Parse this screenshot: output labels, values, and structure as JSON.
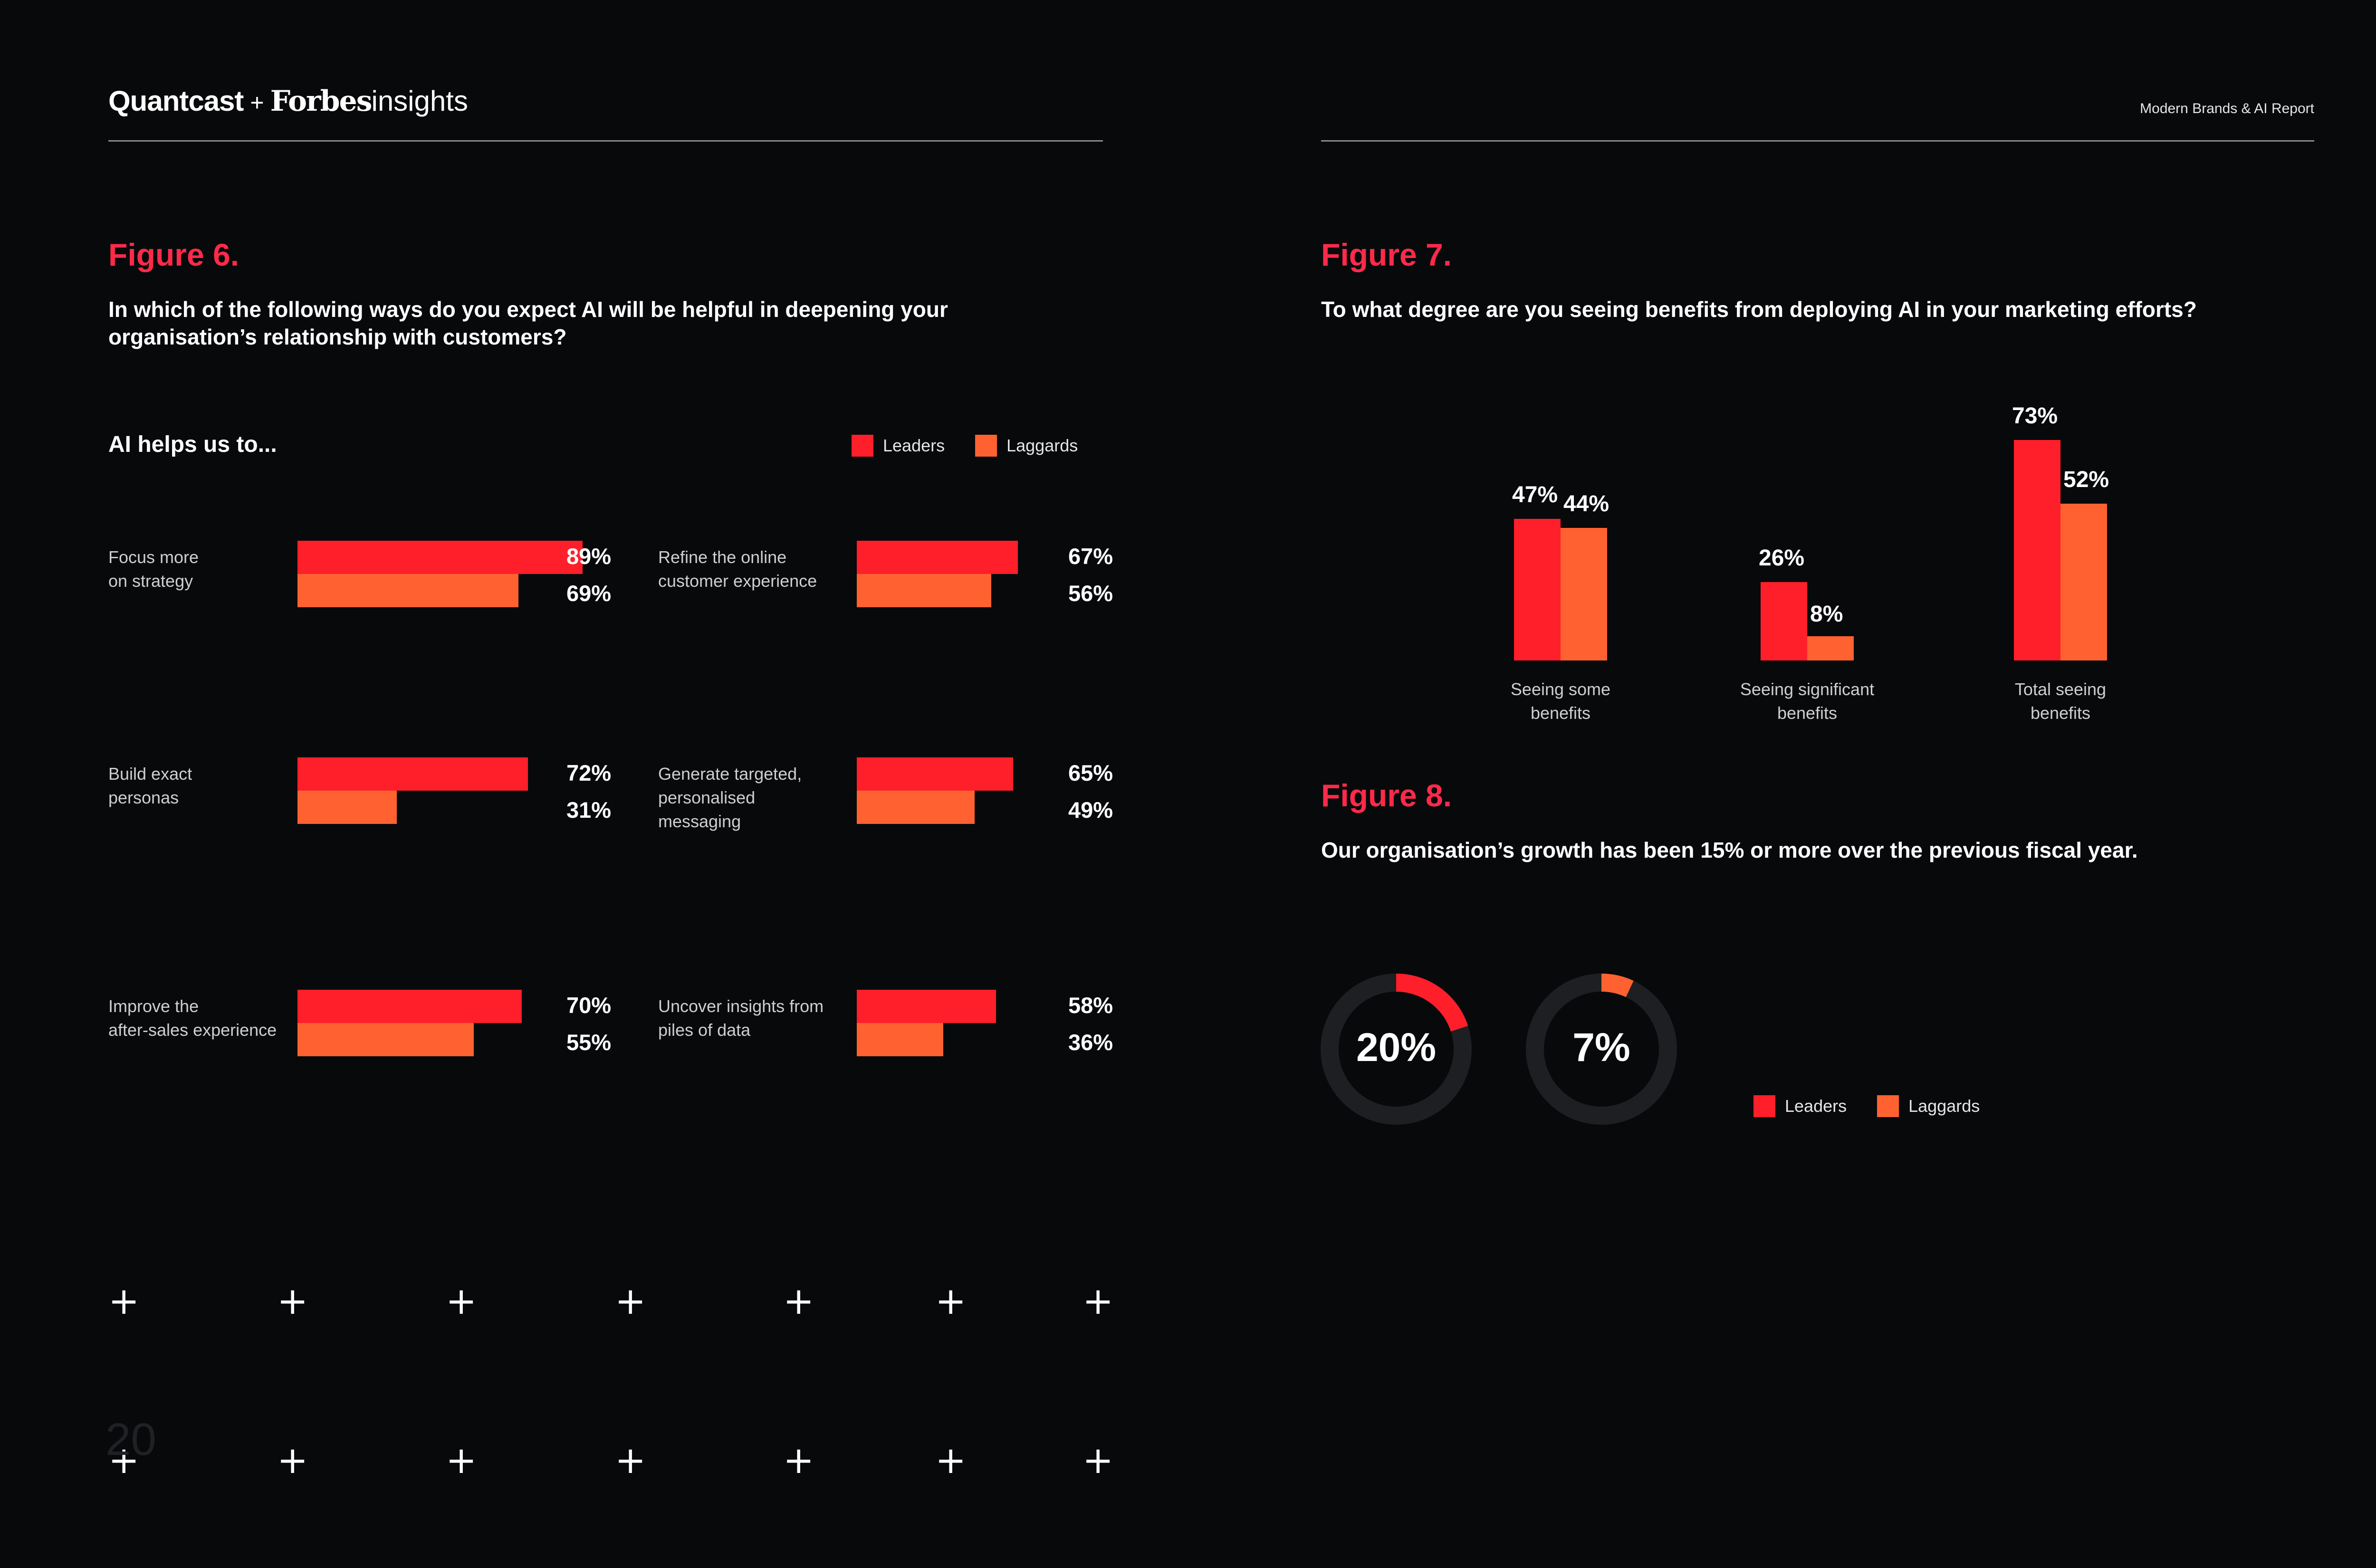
{
  "header": {
    "brand_quantcast": "Quantcast",
    "brand_plus": "+",
    "brand_forbes": "Forbes",
    "brand_insights": "insights",
    "report_title": "Modern Brands & AI Report"
  },
  "page_number": "20",
  "colors": {
    "leaders": "#ff1f2a",
    "laggards": "#ff6230",
    "figure_title": "#ff2a4a",
    "background": "#08090b",
    "donut_track": "#1e1f22"
  },
  "figure6": {
    "title": "Figure 6.",
    "question": "In which of the following ways do you expect AI will be helpful in deepening your organisation’s relationship with customers?",
    "subheading": "AI helps us to...",
    "legend": {
      "leaders": "Leaders",
      "laggards": "Laggards"
    }
  },
  "figure7": {
    "title": "Figure 7.",
    "question": "To what degree are you seeing benefits from deploying AI in your marketing efforts?"
  },
  "figure8": {
    "title": "Figure 8.",
    "statement": "Our organisation’s growth has been 15% or more over the previous fiscal year.",
    "legend": {
      "leaders": "Leaders",
      "laggards": "Laggards"
    }
  },
  "chart_data": [
    {
      "type": "bar",
      "orientation": "horizontal",
      "title": "Figure 6.",
      "subtitle": "AI helps us to...",
      "categories": [
        [
          "Focus more",
          "on strategy"
        ],
        [
          "Build exact",
          "personas"
        ],
        [
          "Improve the",
          "after-sales experience"
        ],
        [
          "Refine the online",
          "customer experience"
        ],
        [
          "Generate targeted,",
          "personalised messaging"
        ],
        [
          "Uncover insights from",
          "piles of data"
        ]
      ],
      "series": [
        {
          "name": "Leaders",
          "values": [
            89,
            72,
            70,
            67,
            65,
            58
          ],
          "labels": [
            "89%",
            "72%",
            "70%",
            "67%",
            "65%",
            "58%"
          ]
        },
        {
          "name": "Laggards",
          "values": [
            69,
            31,
            55,
            56,
            49,
            36
          ],
          "labels": [
            "69%",
            "31%",
            "55%",
            "56%",
            "49%",
            "36%"
          ]
        }
      ],
      "unit": "%",
      "xlim": [
        0,
        100
      ]
    },
    {
      "type": "bar",
      "orientation": "vertical",
      "title": "Figure 7.",
      "categories": [
        [
          "Seeing some",
          "benefits"
        ],
        [
          "Seeing significant",
          "benefits"
        ],
        [
          "Total seeing",
          "benefits"
        ]
      ],
      "series": [
        {
          "name": "Leaders",
          "values": [
            47,
            26,
            73
          ],
          "labels": [
            "47%",
            "26%",
            "73%"
          ]
        },
        {
          "name": "Laggards",
          "values": [
            44,
            8,
            52
          ],
          "labels": [
            "44%",
            "8%",
            "52%"
          ]
        }
      ],
      "unit": "%",
      "ylim": [
        0,
        100
      ]
    },
    {
      "type": "pie",
      "style": "donut",
      "title": "Figure 8.",
      "series": [
        {
          "name": "Leaders",
          "value": 20,
          "label": "20%"
        },
        {
          "name": "Laggards",
          "value": 7,
          "label": "7%"
        }
      ],
      "unit": "%"
    }
  ]
}
